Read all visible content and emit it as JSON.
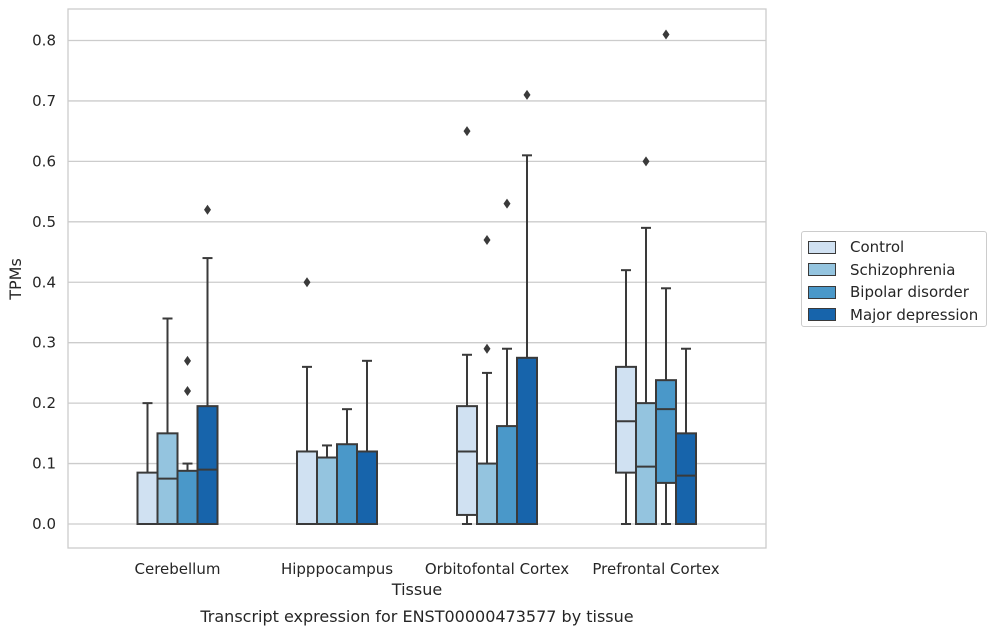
{
  "chart_data": {
    "type": "box",
    "caption": "Transcript expression for ENST00000473577 by tissue",
    "xlabel": "Tissue",
    "ylabel": "TPMs",
    "ylim": [
      -0.04,
      0.85
    ],
    "yticks": [
      0.0,
      0.1,
      0.2,
      0.3,
      0.4,
      0.5,
      0.6,
      0.7,
      0.8
    ],
    "ytick_labels": [
      "0.0",
      "0.1",
      "0.2",
      "0.3",
      "0.4",
      "0.5",
      "0.6",
      "0.7",
      "0.8"
    ],
    "grid": true,
    "legend_position": "right",
    "categories": [
      "Cerebellum",
      "Hipppocampus",
      "Orbitofontal Cortex",
      "Prefrontal Cortex"
    ],
    "series": [
      {
        "name": "Control",
        "color": "#d0e1f2",
        "boxes": [
          {
            "q1": 0.0,
            "median": 0.0,
            "q3": 0.085,
            "whisker_low": 0.0,
            "whisker_high": 0.2,
            "outliers": []
          },
          {
            "q1": 0.0,
            "median": 0.0,
            "q3": 0.12,
            "whisker_low": 0.0,
            "whisker_high": 0.26,
            "outliers": [
              0.4
            ]
          },
          {
            "q1": 0.015,
            "median": 0.12,
            "q3": 0.195,
            "whisker_low": 0.0,
            "whisker_high": 0.28,
            "outliers": [
              0.65
            ]
          },
          {
            "q1": 0.085,
            "median": 0.17,
            "q3": 0.26,
            "whisker_low": 0.0,
            "whisker_high": 0.42,
            "outliers": []
          }
        ]
      },
      {
        "name": "Schizophrenia",
        "color": "#94c4df",
        "boxes": [
          {
            "q1": 0.0,
            "median": 0.075,
            "q3": 0.15,
            "whisker_low": 0.0,
            "whisker_high": 0.34,
            "outliers": []
          },
          {
            "q1": 0.0,
            "median": 0.0,
            "q3": 0.11,
            "whisker_low": 0.0,
            "whisker_high": 0.13,
            "outliers": []
          },
          {
            "q1": 0.0,
            "median": 0.0,
            "q3": 0.1,
            "whisker_low": 0.0,
            "whisker_high": 0.25,
            "outliers": [
              0.29,
              0.47
            ]
          },
          {
            "q1": 0.0,
            "median": 0.095,
            "q3": 0.2,
            "whisker_low": 0.0,
            "whisker_high": 0.49,
            "outliers": [
              0.6
            ]
          }
        ]
      },
      {
        "name": "Bipolar disorder",
        "color": "#4a98c9",
        "boxes": [
          {
            "q1": 0.0,
            "median": 0.0,
            "q3": 0.088,
            "whisker_low": 0.0,
            "whisker_high": 0.1,
            "outliers": [
              0.22,
              0.27
            ]
          },
          {
            "q1": 0.0,
            "median": 0.0,
            "q3": 0.132,
            "whisker_low": 0.0,
            "whisker_high": 0.19,
            "outliers": []
          },
          {
            "q1": 0.0,
            "median": 0.0,
            "q3": 0.162,
            "whisker_low": 0.0,
            "whisker_high": 0.29,
            "outliers": [
              0.53
            ]
          },
          {
            "q1": 0.068,
            "median": 0.19,
            "q3": 0.238,
            "whisker_low": 0.0,
            "whisker_high": 0.39,
            "outliers": [
              0.81
            ]
          }
        ]
      },
      {
        "name": "Major depression",
        "color": "#1764ab",
        "boxes": [
          {
            "q1": 0.0,
            "median": 0.09,
            "q3": 0.195,
            "whisker_low": 0.0,
            "whisker_high": 0.44,
            "outliers": [
              0.52
            ]
          },
          {
            "q1": 0.0,
            "median": 0.0,
            "q3": 0.12,
            "whisker_low": 0.0,
            "whisker_high": 0.27,
            "outliers": []
          },
          {
            "q1": 0.0,
            "median": 0.0,
            "q3": 0.275,
            "whisker_low": 0.0,
            "whisker_high": 0.61,
            "outliers": [
              0.71
            ]
          },
          {
            "q1": 0.0,
            "median": 0.08,
            "q3": 0.15,
            "whisker_low": 0.0,
            "whisker_high": 0.29,
            "outliers": []
          }
        ]
      }
    ]
  }
}
